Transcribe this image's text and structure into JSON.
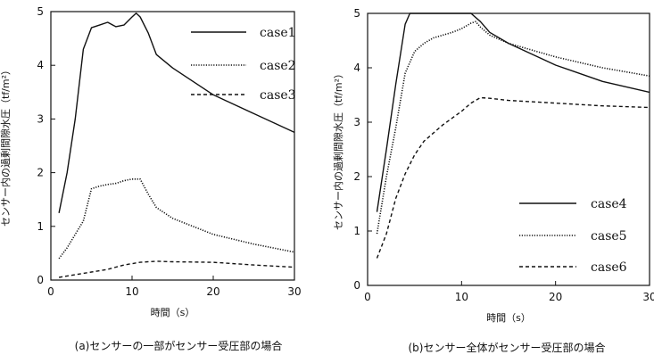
{
  "chart_data": [
    {
      "type": "line",
      "caption": "(a)センサーの一部がセンサー受圧部の場合",
      "xlabel": "時間（s）",
      "ylabel": "センサー内の過剰間隙水圧（tf/m²）",
      "xlim": [
        0,
        30
      ],
      "ylim": [
        0,
        5
      ],
      "xticks": [
        0,
        10,
        20,
        30
      ],
      "yticks": [
        0,
        1,
        2,
        3,
        4,
        5
      ],
      "grid": false,
      "legend_position": "top-right",
      "series": [
        {
          "name": "case1",
          "style": "solid",
          "x": [
            1,
            2,
            3,
            4,
            5,
            6,
            7,
            8,
            9,
            10,
            10.5,
            11,
            12,
            13,
            15,
            20,
            25,
            30
          ],
          "y": [
            1.25,
            2.0,
            3.0,
            4.3,
            4.7,
            4.75,
            4.8,
            4.72,
            4.75,
            4.9,
            4.97,
            4.9,
            4.6,
            4.2,
            3.95,
            3.45,
            3.1,
            2.75
          ]
        },
        {
          "name": "case2",
          "style": "dotted",
          "x": [
            1,
            2,
            3,
            4,
            5,
            6,
            7,
            8,
            9,
            10,
            11,
            12,
            13,
            15,
            20,
            25,
            30
          ],
          "y": [
            0.4,
            0.6,
            0.85,
            1.1,
            1.7,
            1.75,
            1.78,
            1.8,
            1.85,
            1.88,
            1.88,
            1.6,
            1.35,
            1.15,
            0.85,
            0.67,
            0.52
          ]
        },
        {
          "name": "case3",
          "style": "dashed",
          "x": [
            1,
            3,
            5,
            7,
            9,
            11,
            13,
            15,
            20,
            25,
            30
          ],
          "y": [
            0.05,
            0.1,
            0.15,
            0.2,
            0.28,
            0.33,
            0.35,
            0.34,
            0.33,
            0.28,
            0.24
          ]
        }
      ]
    },
    {
      "type": "line",
      "caption": "(b)センサー全体がセンサー受圧部の場合",
      "xlabel": "時間（s）",
      "ylabel": "センサー内の過剰間隙水圧（tf/m²）",
      "xlim": [
        0,
        30
      ],
      "ylim": [
        0,
        5
      ],
      "xticks": [
        0,
        10,
        20,
        30
      ],
      "yticks": [
        0,
        1,
        2,
        3,
        4,
        5
      ],
      "grid": false,
      "legend_position": "bottom-right",
      "series": [
        {
          "name": "case4",
          "style": "solid",
          "x": [
            1,
            2,
            3,
            4,
            4.5,
            5,
            8,
            11,
            12,
            13,
            15,
            20,
            25,
            30
          ],
          "y": [
            1.35,
            2.5,
            3.7,
            4.8,
            5.0,
            5.0,
            5.0,
            5.0,
            4.85,
            4.65,
            4.45,
            4.05,
            3.75,
            3.55
          ]
        },
        {
          "name": "case5",
          "style": "dotted",
          "x": [
            1,
            2,
            3,
            4,
            5,
            6,
            7,
            8,
            9,
            10,
            11,
            11.5,
            12,
            13,
            15,
            20,
            25,
            30
          ],
          "y": [
            0.95,
            2.0,
            2.9,
            3.9,
            4.3,
            4.45,
            4.55,
            4.6,
            4.65,
            4.72,
            4.82,
            4.85,
            4.75,
            4.6,
            4.45,
            4.2,
            4.0,
            3.85
          ]
        },
        {
          "name": "case6",
          "style": "dashed",
          "x": [
            1,
            2,
            3,
            4,
            5,
            6,
            8,
            10,
            11,
            12,
            13,
            15,
            20,
            25,
            30
          ],
          "y": [
            0.5,
            0.95,
            1.6,
            2.05,
            2.4,
            2.65,
            2.95,
            3.2,
            3.35,
            3.45,
            3.44,
            3.4,
            3.35,
            3.3,
            3.27
          ]
        }
      ]
    }
  ]
}
